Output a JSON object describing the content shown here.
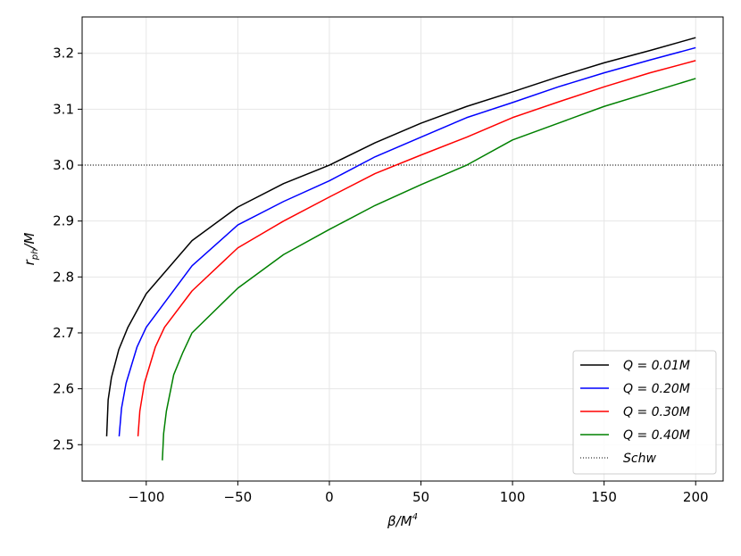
{
  "chart_data": {
    "type": "line",
    "title": "",
    "xlabel": {
      "base": "β/M",
      "sup": "4"
    },
    "ylabel": {
      "base": "r",
      "sub": "ph",
      "rest": "/M"
    },
    "xlim": [
      -135,
      215
    ],
    "ylim": [
      2.435,
      3.265
    ],
    "x_ticks": [
      -100,
      -50,
      0,
      50,
      100,
      150,
      200
    ],
    "x_tick_labels": [
      "−100",
      "−50",
      "0",
      "50",
      "100",
      "150",
      "200"
    ],
    "y_ticks": [
      2.5,
      2.6,
      2.7,
      2.8,
      2.9,
      3.0,
      3.1,
      3.2
    ],
    "y_tick_labels": [
      "2.5",
      "2.6",
      "2.7",
      "2.8",
      "2.9",
      "3.0",
      "3.1",
      "3.2"
    ],
    "grid": true,
    "legend_position": "bottom-right",
    "reference_line": {
      "name": "Schw",
      "y": 3.0,
      "style": "dotted",
      "color": "#000000"
    },
    "series": [
      {
        "name": "Q = 0.01M",
        "color": "#000000",
        "x": [
          -121.6,
          -120.8,
          -119,
          -115,
          -110,
          -100,
          -75,
          -50,
          -25,
          0,
          25,
          50,
          75,
          100,
          125,
          150,
          175,
          200
        ],
        "y": [
          2.515,
          2.58,
          2.62,
          2.67,
          2.71,
          2.77,
          2.865,
          2.925,
          2.967,
          3.0,
          3.04,
          3.075,
          3.105,
          3.131,
          3.158,
          3.183,
          3.205,
          3.228
        ]
      },
      {
        "name": "Q = 0.20M",
        "color": "#0000ff",
        "x": [
          -114.8,
          -113.5,
          -111,
          -105,
          -100,
          -75,
          -50,
          -25,
          0,
          25,
          50,
          75,
          100,
          125,
          150,
          175,
          200
        ],
        "y": [
          2.515,
          2.565,
          2.61,
          2.675,
          2.71,
          2.82,
          2.893,
          2.935,
          2.972,
          3.015,
          3.05,
          3.085,
          3.112,
          3.14,
          3.165,
          3.188,
          3.21
        ]
      },
      {
        "name": "Q = 0.30M",
        "color": "#ff0000",
        "x": [
          -104.5,
          -103.5,
          -101,
          -95,
          -90,
          -75,
          -50,
          -25,
          0,
          25,
          50,
          75,
          100,
          125,
          150,
          175,
          200
        ],
        "y": [
          2.515,
          2.56,
          2.61,
          2.675,
          2.71,
          2.775,
          2.852,
          2.9,
          2.943,
          2.985,
          3.018,
          3.05,
          3.085,
          3.113,
          3.14,
          3.165,
          3.187
        ]
      },
      {
        "name": "Q = 0.40M",
        "color": "#008000",
        "x": [
          -91.2,
          -90.5,
          -89,
          -85,
          -80,
          -75,
          -50,
          -25,
          0,
          25,
          50,
          75,
          100,
          125,
          150,
          175,
          200
        ],
        "y": [
          2.472,
          2.52,
          2.56,
          2.625,
          2.665,
          2.7,
          2.78,
          2.84,
          2.885,
          2.928,
          2.965,
          3.0,
          3.045,
          3.075,
          3.105,
          3.13,
          3.155
        ]
      }
    ]
  }
}
